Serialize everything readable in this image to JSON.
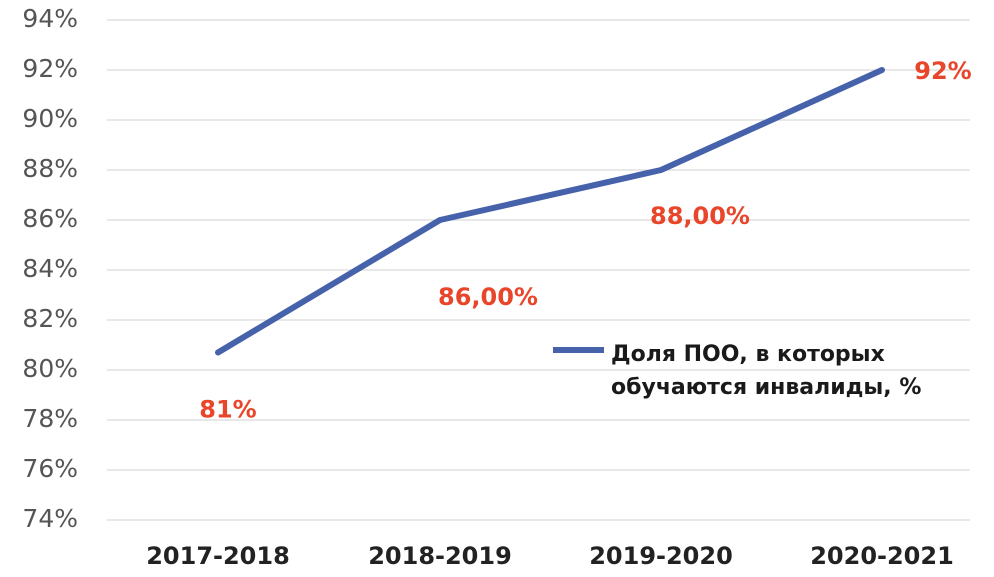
{
  "chart_data": {
    "type": "line",
    "categories": [
      "2017-2018",
      "2018-2019",
      "2019-2020",
      "2020-2021"
    ],
    "series": [
      {
        "name": "Доля ПОО, в которых обучаются инвалиды, %",
        "color": "#4662aa",
        "values": [
          80.7,
          86,
          88,
          92
        ],
        "value_labels": [
          "81%",
          "86,00%",
          "88,00%",
          "92%"
        ]
      }
    ],
    "ylim": [
      74,
      94
    ],
    "yticks": [
      {
        "value": 74,
        "label": "74%"
      },
      {
        "value": 76,
        "label": "76%"
      },
      {
        "value": 78,
        "label": "78%"
      },
      {
        "value": 80,
        "label": "80%"
      },
      {
        "value": 82,
        "label": "82%"
      },
      {
        "value": 84,
        "label": "84%"
      },
      {
        "value": 86,
        "label": "86%"
      },
      {
        "value": 88,
        "label": "88%"
      },
      {
        "value": 90,
        "label": "90%"
      },
      {
        "value": 92,
        "label": "92%"
      },
      {
        "value": 94,
        "label": "94%"
      }
    ],
    "grid": true,
    "label_color": "#e8452a"
  }
}
